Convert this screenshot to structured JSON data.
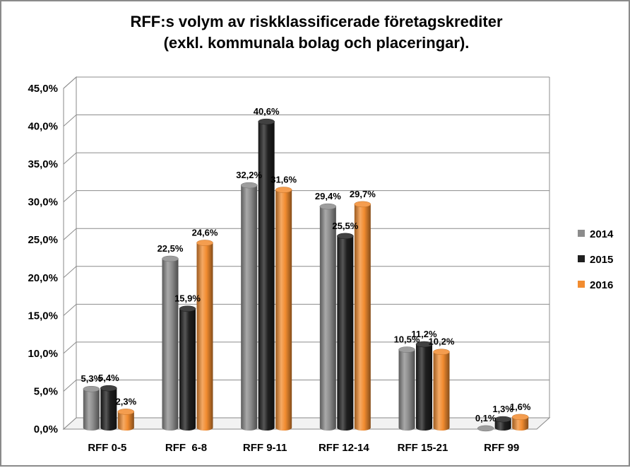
{
  "chart_data": {
    "type": "bar",
    "title_lines": [
      "RFF:s volym av riskklassificerade företagskrediter",
      "(exkl. kommunala  bolag och placeringar)."
    ],
    "categories": [
      "RFF 0-5",
      "RFF  6-8",
      "RFF 9-11",
      "RFF 12-14",
      "RFF 15-21",
      "RFF 99"
    ],
    "series": [
      {
        "name": "2014",
        "values": [
          5.3,
          22.5,
          32.2,
          29.4,
          10.5,
          0.1
        ],
        "labels": [
          "5,3%",
          "22,5%",
          "32,2%",
          "29,4%",
          "10,5%",
          "0,1%"
        ],
        "color": "#8c8c8c"
      },
      {
        "name": "2015",
        "values": [
          5.4,
          15.9,
          40.6,
          25.5,
          11.2,
          1.3
        ],
        "labels": [
          "5,4%",
          "15,9%",
          "40,6%",
          "25,5%",
          "11,2%",
          "1,3%"
        ],
        "color": "#1f1f1f"
      },
      {
        "name": "2016",
        "values": [
          2.3,
          24.6,
          31.6,
          29.7,
          10.2,
          1.6
        ],
        "labels": [
          "2,3%",
          "24,6%",
          "31,6%",
          "29,7%",
          "10,2%",
          "1,6%"
        ],
        "color": "#f28c30"
      }
    ],
    "ylim": [
      0,
      45
    ],
    "yticks": [
      0,
      5,
      10,
      15,
      20,
      25,
      30,
      35,
      40,
      45
    ],
    "ytick_labels": [
      "0,0%",
      "5,0%",
      "10,0%",
      "15,0%",
      "20,0%",
      "25,0%",
      "30,0%",
      "35,0%",
      "40,0%",
      "45,0%"
    ],
    "grid": true,
    "legend_position": "right",
    "style": "3d-cylinder"
  }
}
